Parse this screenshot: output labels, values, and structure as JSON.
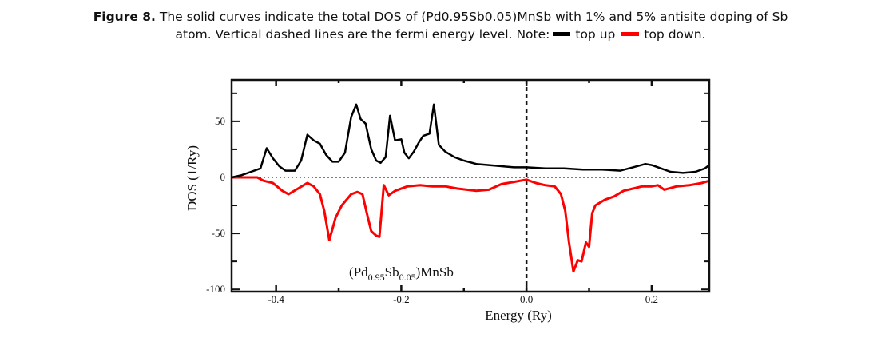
{
  "caption": {
    "figure_label": "Figure 8.",
    "line1": " The solid curves indicate the total DOS of (Pd0.95Sb0.05)MnSb with 1% and  5% antisite doping of Sb",
    "line2_prefix": "atom. Vertical dashed lines are the fermi energy level. Note:",
    "legend_up_label": "top up",
    "legend_down_label": "top down."
  },
  "colors": {
    "spin_up": "#000000",
    "spin_down": "#ff0000"
  },
  "chart_data": {
    "type": "line",
    "title": "",
    "annotation": {
      "base": "(Pd",
      "sub1": "0.95",
      "mid": "Sb",
      "sub2": "0.05",
      "tail": ")MnSb"
    },
    "xlabel": "Energy (Ry)",
    "ylabel": "DOS (1/Ry)",
    "xlim": [
      -0.471,
      0.292
    ],
    "ylim": [
      -102,
      87
    ],
    "xticks": [
      -0.4,
      -0.2,
      0.0,
      0.2
    ],
    "xtick_labels": [
      "-0.4",
      "-0.2",
      "0.0",
      "0.2"
    ],
    "xminor": [
      -0.3,
      -0.1,
      0.1
    ],
    "yticks": [
      50,
      0,
      -50,
      -100
    ],
    "ytick_labels": [
      "50",
      "0",
      "-50",
      "-100"
    ],
    "yminor": [
      75,
      25,
      -25,
      -75
    ],
    "fermi_level": 0.0,
    "zero_line": 0,
    "grid": false,
    "legend": "in caption",
    "series": [
      {
        "name": "top up",
        "color": "#000000",
        "x": [
          -0.471,
          -0.455,
          -0.44,
          -0.425,
          -0.415,
          -0.405,
          -0.395,
          -0.385,
          -0.37,
          -0.36,
          -0.35,
          -0.34,
          -0.33,
          -0.32,
          -0.31,
          -0.3,
          -0.29,
          -0.28,
          -0.272,
          -0.265,
          -0.257,
          -0.248,
          -0.24,
          -0.233,
          -0.225,
          -0.218,
          -0.21,
          -0.2,
          -0.195,
          -0.188,
          -0.18,
          -0.172,
          -0.165,
          -0.155,
          -0.148,
          -0.14,
          -0.13,
          -0.115,
          -0.1,
          -0.08,
          -0.06,
          -0.04,
          -0.02,
          0.0,
          0.03,
          0.06,
          0.09,
          0.12,
          0.15,
          0.17,
          0.19,
          0.2,
          0.215,
          0.23,
          0.25,
          0.27,
          0.285,
          0.292
        ],
        "y": [
          0,
          2,
          5,
          8,
          26,
          17,
          10,
          6,
          6,
          15,
          38,
          33,
          30,
          20,
          14,
          14,
          22,
          54,
          65,
          52,
          48,
          25,
          15,
          13,
          18,
          55,
          33,
          34,
          22,
          17,
          23,
          31,
          37,
          39,
          65,
          29,
          23,
          18,
          15,
          12,
          11,
          10,
          9,
          9,
          8,
          8,
          7,
          7,
          6,
          9,
          12,
          11,
          8,
          5,
          4,
          5,
          8,
          11
        ]
      },
      {
        "name": "top down",
        "color": "#ff0000",
        "x": [
          -0.471,
          -0.45,
          -0.43,
          -0.42,
          -0.405,
          -0.39,
          -0.38,
          -0.365,
          -0.35,
          -0.34,
          -0.33,
          -0.323,
          -0.315,
          -0.305,
          -0.295,
          -0.28,
          -0.27,
          -0.262,
          -0.255,
          -0.248,
          -0.24,
          -0.235,
          -0.228,
          -0.22,
          -0.21,
          -0.19,
          -0.17,
          -0.15,
          -0.13,
          -0.11,
          -0.08,
          -0.06,
          -0.04,
          -0.02,
          0.0,
          0.015,
          0.03,
          0.045,
          0.055,
          0.062,
          0.068,
          0.075,
          0.082,
          0.088,
          0.095,
          0.1,
          0.105,
          0.11,
          0.125,
          0.14,
          0.155,
          0.17,
          0.185,
          0.2,
          0.21,
          0.22,
          0.24,
          0.26,
          0.28,
          0.292
        ],
        "y": [
          0,
          0,
          0,
          -3,
          -5,
          -12,
          -15,
          -10,
          -5,
          -8,
          -15,
          -30,
          -56,
          -36,
          -25,
          -15,
          -13,
          -15,
          -32,
          -48,
          -52,
          -53,
          -7,
          -16,
          -12,
          -8,
          -7,
          -8,
          -8,
          -10,
          -12,
          -11,
          -6,
          -4,
          -2,
          -5,
          -7,
          -8,
          -15,
          -30,
          -58,
          -84,
          -74,
          -75,
          -58,
          -62,
          -32,
          -25,
          -20,
          -17,
          -12,
          -10,
          -8,
          -8,
          -7,
          -11,
          -8,
          -7,
          -5,
          -3
        ]
      }
    ]
  }
}
